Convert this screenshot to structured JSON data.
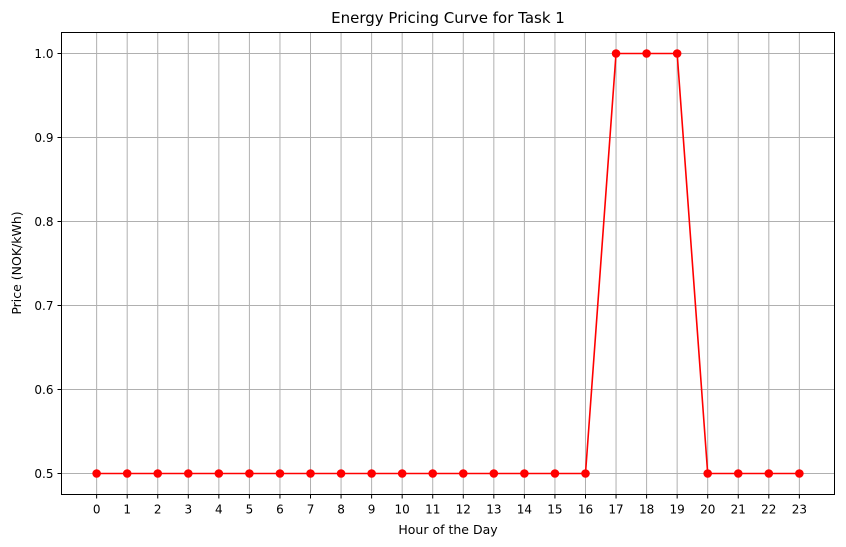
{
  "chart_data": {
    "type": "line",
    "title": "Energy Pricing Curve for Task 1",
    "xlabel": "Hour of the Day",
    "ylabel": "Price (NOK/kWh)",
    "x": [
      0,
      1,
      2,
      3,
      4,
      5,
      6,
      7,
      8,
      9,
      10,
      11,
      12,
      13,
      14,
      15,
      16,
      17,
      18,
      19,
      20,
      21,
      22,
      23
    ],
    "series": [
      {
        "values": [
          0.5,
          0.5,
          0.5,
          0.5,
          0.5,
          0.5,
          0.5,
          0.5,
          0.5,
          0.5,
          0.5,
          0.5,
          0.5,
          0.5,
          0.5,
          0.5,
          0.5,
          1.0,
          1.0,
          1.0,
          0.5,
          0.5,
          0.5,
          0.5
        ],
        "color": "#ff0000",
        "marker": "circle"
      }
    ],
    "xlim": [
      -1.15,
      24.15
    ],
    "ylim": [
      0.475,
      1.025
    ],
    "xticks": [
      "0",
      "1",
      "2",
      "3",
      "4",
      "5",
      "6",
      "7",
      "8",
      "9",
      "10",
      "11",
      "12",
      "13",
      "14",
      "15",
      "16",
      "17",
      "18",
      "19",
      "20",
      "21",
      "22",
      "23"
    ],
    "yticks": [
      "0.5",
      "0.6",
      "0.7",
      "0.8",
      "0.9",
      "1.0"
    ],
    "grid": true,
    "legend": "none"
  }
}
